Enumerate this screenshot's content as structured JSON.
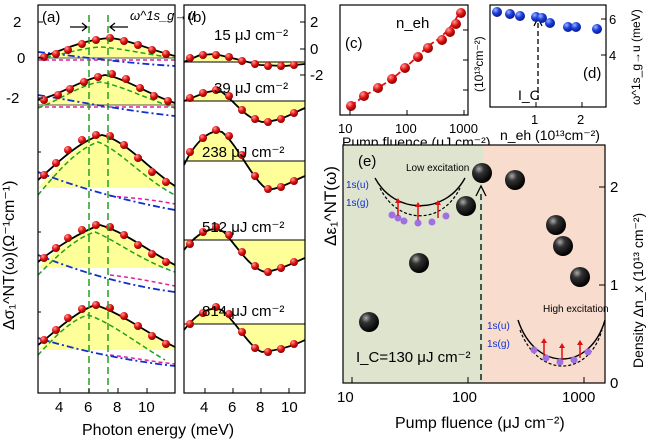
{
  "chart_data": [
    {
      "panel": "a",
      "type": "line",
      "label": "(a)",
      "ylabel": "Δσ₁^NT(ω)(Ω⁻¹cm⁻¹)",
      "xlabel": "Photon energy (meV)",
      "xticks": [
        4,
        6,
        8,
        10
      ],
      "xlim": [
        2,
        10.5
      ],
      "yticks": [
        2,
        0,
        -2
      ],
      "annotation": "ω^1s_g→u",
      "dashed_lines_x": [
        5.3,
        6.5
      ],
      "curves": [
        {
          "name": "",
          "x": [
            2.2,
            3,
            4,
            5,
            6,
            6.5,
            7,
            8,
            9,
            10,
            10.4
          ],
          "y": [
            0.05,
            0.25,
            0.55,
            0.8,
            0.95,
            0.95,
            0.9,
            0.7,
            0.4,
            0.15,
            0.05
          ]
        },
        {
          "name": "",
          "x": [
            2.2,
            3,
            4,
            5,
            6,
            6.5,
            7,
            8,
            9,
            10,
            10.4
          ],
          "y": [
            0.05,
            0.3,
            0.55,
            0.9,
            1.0,
            1.0,
            0.95,
            0.7,
            0.45,
            0.15,
            0.1
          ]
        }
      ]
    },
    {
      "panel": "b",
      "type": "line",
      "label": "(b)",
      "xlabel": "Photon energy (meV)",
      "xticks": [
        4,
        6,
        8,
        10
      ],
      "xlim": [
        2,
        10.5
      ],
      "yticks": [
        2,
        0,
        -2
      ],
      "traces": [
        {
          "fluence": "15 μJ cm⁻²"
        },
        {
          "fluence": "39 μJ cm⁻²"
        },
        {
          "fluence": "238 μJ cm⁻²"
        },
        {
          "fluence": "512 μJ cm⁻²"
        },
        {
          "fluence": "814 μJ cm⁻²"
        }
      ]
    },
    {
      "panel": "c",
      "type": "scatter",
      "label": "(c)",
      "series_label": "n_eh",
      "xlabel": "Pump fluence (μJ cm⁻²)",
      "ylabel": "(10¹³cm⁻²)",
      "xscale": "log",
      "xticks": [
        10,
        100,
        1000
      ],
      "x": [
        12,
        18,
        28,
        45,
        80,
        140,
        240,
        420,
        560,
        720,
        850
      ],
      "y": [
        0.2,
        0.35,
        0.5,
        0.65,
        0.8,
        0.95,
        1.1,
        1.35,
        1.6,
        1.9,
        2.3
      ]
    },
    {
      "panel": "d",
      "type": "scatter",
      "label": "(d)",
      "xlabel": "n_eh (10¹³cm⁻²)",
      "ylabel": "ω^1s_g→u (meV)",
      "xticks": [
        1,
        2
      ],
      "yticks": [
        6,
        4
      ],
      "ylim": [
        3,
        7.8
      ],
      "annotation": "I_C",
      "x": [
        0.2,
        0.4,
        0.6,
        1.05,
        1.15,
        1.3,
        1.7,
        1.9,
        2.4
      ],
      "y": [
        7.2,
        7.0,
        6.9,
        6.8,
        6.7,
        6.3,
        6.1,
        6.0,
        5.7
      ]
    },
    {
      "panel": "e",
      "type": "scatter",
      "label": "(e)",
      "xlabel": "Pump fluence (μJ cm⁻²)",
      "ylabel_left": "Δε₁^NT(ω)",
      "ylabel_right": "Density Δn_x (10¹³ cm⁻²)",
      "xscale": "log",
      "xticks": [
        10,
        100,
        1000
      ],
      "yticks": [
        0,
        1,
        2
      ],
      "ylim": [
        0,
        2.5
      ],
      "threshold": "I_C=130 μJ cm⁻²",
      "regions": [
        {
          "name": "Low excitation",
          "color": "#dfe4cf"
        },
        {
          "name": "High excitation",
          "color": "#f8dccd"
        }
      ],
      "inset_labels": [
        "1s(u)",
        "1s(g)"
      ],
      "x": [
        15,
        40,
        95,
        125,
        220,
        430,
        500,
        800
      ],
      "y": [
        0.6,
        1.2,
        1.75,
        2.15,
        2.1,
        1.6,
        1.38,
        1.05
      ]
    }
  ]
}
